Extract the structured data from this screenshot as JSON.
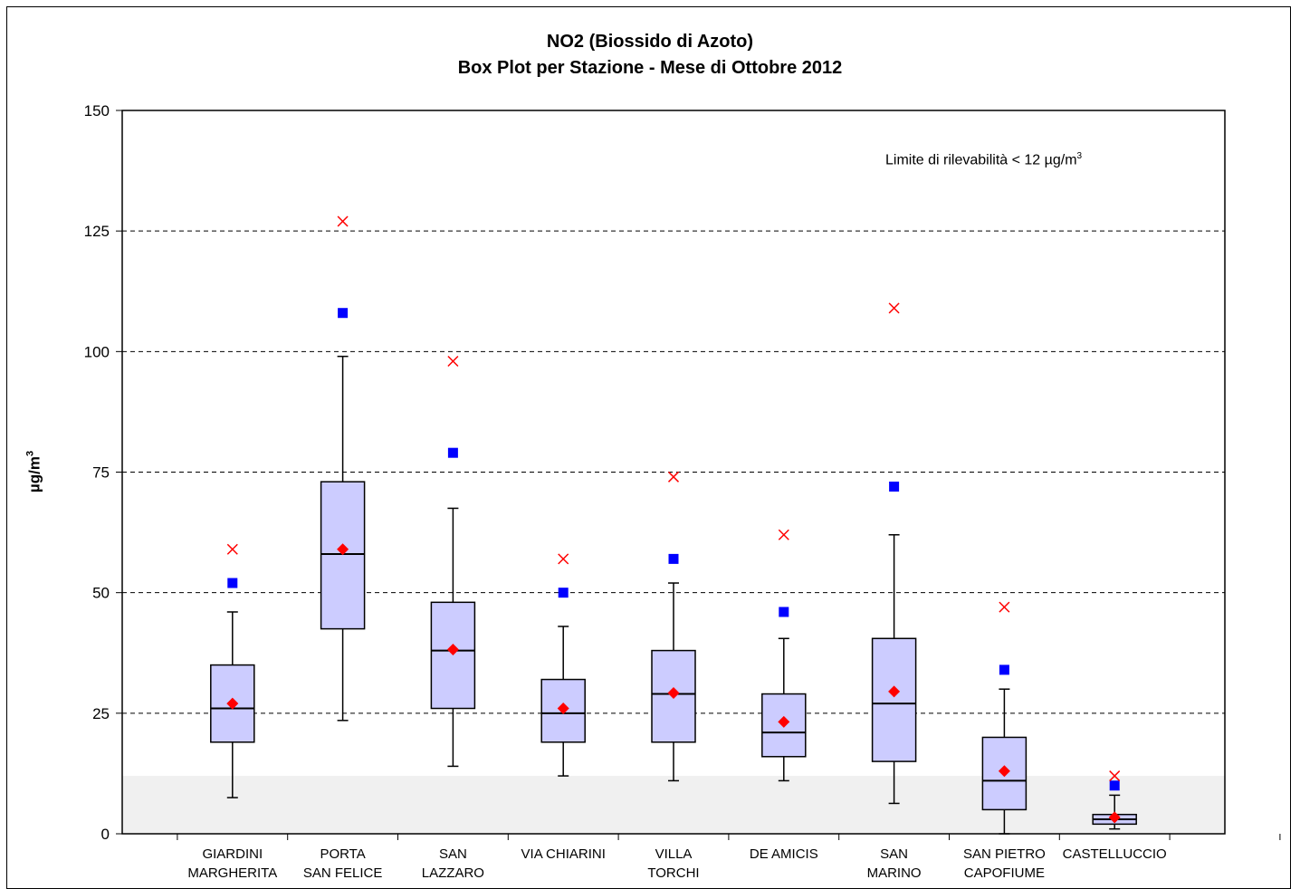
{
  "chart_data": {
    "type": "box",
    "title": "NO2 (Biossido di Azoto)",
    "subtitle": "Box Plot per Stazione - Mese di Ottobre 2012",
    "ylabel": "µg/m",
    "ylabel_sup": "3",
    "ylim": [
      0,
      150
    ],
    "yticks": [
      0,
      25,
      50,
      75,
      100,
      125,
      150
    ],
    "grid": "horizontal dashed",
    "annotation": "Limite di rilevabilità < 12 µg/m",
    "annotation_sup": "3",
    "detection_limit": 12,
    "categories": [
      {
        "lines": [
          "GIARDINI",
          "MARGHERITA"
        ]
      },
      {
        "lines": [
          "PORTA",
          "SAN FELICE"
        ]
      },
      {
        "lines": [
          "SAN",
          "LAZZARO"
        ]
      },
      {
        "lines": [
          "VIA CHIARINI"
        ]
      },
      {
        "lines": [
          "VILLA",
          "TORCHI"
        ]
      },
      {
        "lines": [
          "DE AMICIS"
        ]
      },
      {
        "lines": [
          "SAN",
          "MARINO"
        ]
      },
      {
        "lines": [
          "SAN PIETRO",
          "CAPOFIUME"
        ]
      },
      {
        "lines": [
          "CASTELLUCCIO"
        ]
      }
    ],
    "boxes": [
      {
        "whisker_low": 7.5,
        "q1": 19,
        "median": 26,
        "q3": 35,
        "whisker_high": 46,
        "mean": 27,
        "p98": 52,
        "max": 59
      },
      {
        "whisker_low": 23.5,
        "q1": 42.5,
        "median": 58,
        "q3": 73,
        "whisker_high": 99,
        "mean": 59,
        "p98": 108,
        "max": 127
      },
      {
        "whisker_low": 14,
        "q1": 26,
        "median": 38,
        "q3": 48,
        "whisker_high": 67.5,
        "mean": 38.2,
        "p98": 79,
        "max": 98
      },
      {
        "whisker_low": 12,
        "q1": 19,
        "median": 25,
        "q3": 32,
        "whisker_high": 43,
        "mean": 26,
        "p98": 50,
        "max": 57
      },
      {
        "whisker_low": 11,
        "q1": 19,
        "median": 29,
        "q3": 38,
        "whisker_high": 52,
        "mean": 29.2,
        "p98": 57,
        "max": 74
      },
      {
        "whisker_low": 11,
        "q1": 16,
        "median": 21,
        "q3": 29,
        "whisker_high": 40.5,
        "mean": 23.2,
        "p98": 46,
        "max": 62
      },
      {
        "whisker_low": 6.3,
        "q1": 15,
        "median": 27,
        "q3": 40.5,
        "whisker_high": 62,
        "mean": 29.5,
        "p98": 72,
        "max": 109
      },
      {
        "whisker_low": 0,
        "q1": 5,
        "median": 11,
        "q3": 20,
        "whisker_high": 30,
        "mean": 13,
        "p98": 34,
        "max": 47
      },
      {
        "whisker_low": 1,
        "q1": 2,
        "median": 3,
        "q3": 4,
        "whisker_high": 8,
        "mean": 3.4,
        "p98": 10,
        "max": 12
      }
    ],
    "colors": {
      "box_fill": "#ccccff",
      "mean_marker": "#ff0000",
      "p98_marker": "#0000ff",
      "max_marker": "#ff0000",
      "detection_band": "#f0f0f0",
      "grid": "#000000"
    }
  }
}
